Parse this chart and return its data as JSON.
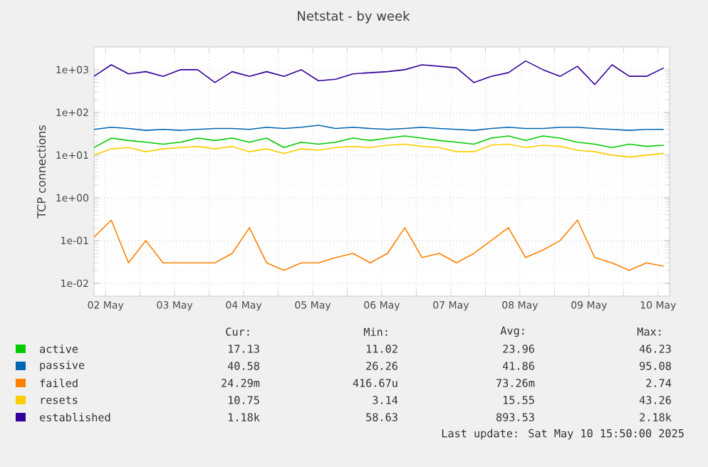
{
  "chart_data": {
    "type": "line",
    "title": "Netstat - by week",
    "ylabel": "TCP connections",
    "x": [
      "2025-05-02T08:00",
      "2025-05-02T14:00",
      "2025-05-02T20:00",
      "2025-05-03T02:00",
      "2025-05-03T08:00",
      "2025-05-03T14:00",
      "2025-05-03T20:00",
      "2025-05-04T02:00",
      "2025-05-04T08:00",
      "2025-05-04T14:00",
      "2025-05-04T20:00",
      "2025-05-05T02:00",
      "2025-05-05T08:00",
      "2025-05-05T14:00",
      "2025-05-05T20:00",
      "2025-05-06T02:00",
      "2025-05-06T08:00",
      "2025-05-06T14:00",
      "2025-05-06T20:00",
      "2025-05-07T02:00",
      "2025-05-07T08:00",
      "2025-05-07T14:00",
      "2025-05-07T20:00",
      "2025-05-08T02:00",
      "2025-05-08T08:00",
      "2025-05-08T14:00",
      "2025-05-08T20:00",
      "2025-05-09T02:00",
      "2025-05-09T08:00",
      "2025-05-09T14:00",
      "2025-05-09T20:00",
      "2025-05-10T02:00",
      "2025-05-10T08:00",
      "2025-05-10T14:00"
    ],
    "series": [
      {
        "name": "active",
        "color": "#00cc00",
        "values": [
          15,
          25,
          22,
          20,
          18,
          20,
          25,
          22,
          25,
          20,
          25,
          15,
          20,
          18,
          20,
          25,
          22,
          25,
          28,
          25,
          22,
          20,
          18,
          25,
          28,
          22,
          28,
          25,
          20,
          18,
          15,
          18,
          16,
          17
        ]
      },
      {
        "name": "passive",
        "color": "#0066b3",
        "values": [
          40,
          45,
          42,
          38,
          40,
          38,
          40,
          42,
          42,
          40,
          45,
          42,
          45,
          50,
          42,
          45,
          42,
          40,
          42,
          45,
          42,
          40,
          38,
          42,
          45,
          42,
          42,
          45,
          45,
          42,
          40,
          38,
          40,
          40
        ]
      },
      {
        "name": "failed",
        "color": "#ff8000",
        "values": [
          0.12,
          0.3,
          0.03,
          0.1,
          0.03,
          0.03,
          0.03,
          0.03,
          0.05,
          0.2,
          0.03,
          0.02,
          0.03,
          0.03,
          0.04,
          0.05,
          0.03,
          0.05,
          0.2,
          0.04,
          0.05,
          0.03,
          0.05,
          0.1,
          0.2,
          0.04,
          0.06,
          0.1,
          0.3,
          0.04,
          0.03,
          0.02,
          0.03,
          0.025
        ]
      },
      {
        "name": "resets",
        "color": "#ffcc00",
        "values": [
          10,
          14,
          15,
          12,
          14,
          15,
          16,
          14,
          16,
          12,
          14,
          11,
          14,
          13,
          15,
          16,
          15,
          17,
          18,
          16,
          15,
          12,
          12,
          17,
          18,
          15,
          17,
          16,
          13,
          12,
          10,
          9,
          10,
          11
        ]
      },
      {
        "name": "established",
        "color": "#330099",
        "values": [
          700,
          1300,
          800,
          900,
          700,
          1000,
          1000,
          500,
          900,
          700,
          900,
          700,
          1000,
          550,
          600,
          800,
          850,
          900,
          1000,
          1300,
          1200,
          1100,
          500,
          700,
          850,
          1600,
          1000,
          700,
          1200,
          450,
          1300,
          700,
          700,
          1100
        ]
      }
    ],
    "xlim": [
      "2025-05-02T08:00",
      "2025-05-10T16:00"
    ],
    "xticks": [
      {
        "value": "2025-05-02T12:00",
        "label": "02 May"
      },
      {
        "value": "2025-05-03T12:00",
        "label": "03 May"
      },
      {
        "value": "2025-05-04T12:00",
        "label": "04 May"
      },
      {
        "value": "2025-05-05T12:00",
        "label": "05 May"
      },
      {
        "value": "2025-05-06T12:00",
        "label": "06 May"
      },
      {
        "value": "2025-05-07T12:00",
        "label": "07 May"
      },
      {
        "value": "2025-05-08T12:00",
        "label": "08 May"
      },
      {
        "value": "2025-05-09T12:00",
        "label": "09 May"
      },
      {
        "value": "2025-05-10T12:00",
        "label": "10 May"
      },
      {
        "value": "2025-05-03T00:00",
        "label": null
      },
      {
        "value": "2025-05-04T00:00",
        "label": null
      },
      {
        "value": "2025-05-05T00:00",
        "label": null
      },
      {
        "value": "2025-05-06T00:00",
        "label": null
      },
      {
        "value": "2025-05-07T00:00",
        "label": null
      },
      {
        "value": "2025-05-08T00:00",
        "label": null
      },
      {
        "value": "2025-05-09T00:00",
        "label": null
      },
      {
        "value": "2025-05-10T00:00",
        "label": null
      }
    ],
    "ylim": [
      0.005,
      3400
    ],
    "yticks": [
      {
        "value": 0.01,
        "label": "1e-02"
      },
      {
        "value": 0.1,
        "label": "1e-01"
      },
      {
        "value": 1,
        "label": "1e+00"
      },
      {
        "value": 10,
        "label": "1e+01"
      },
      {
        "value": 100,
        "label": "1e+02"
      },
      {
        "value": 1000,
        "label": "1e+03"
      }
    ],
    "log": "y",
    "grid": true,
    "legend": "bottom",
    "marker": "none",
    "line_style": "solid",
    "annotations": [
      "Cur:",
      "Min:",
      "Avg:",
      "Max:",
      "17.13",
      "11.02",
      "23.96",
      "46.23",
      "40.58",
      "26.26",
      "41.86",
      "95.08",
      "24.29m",
      "416.67u",
      "73.26m",
      "2.74",
      "10.75",
      "3.14",
      "15.55",
      "43.26",
      "1.18k",
      "58.63",
      "893.53",
      "2.18k",
      "Last update: Sat May 10 15:50:00 2025"
    ]
  }
}
